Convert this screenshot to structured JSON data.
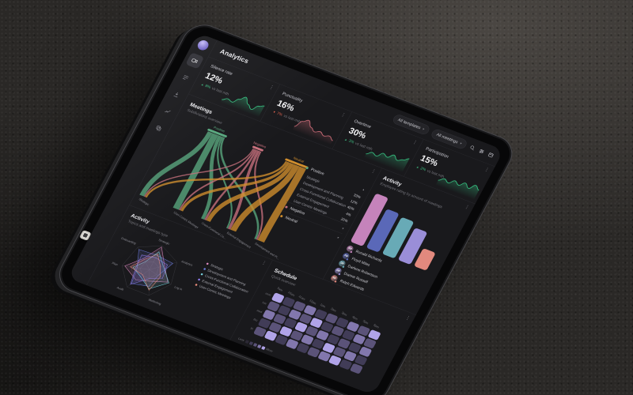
{
  "app": {
    "title": "Analytics"
  },
  "header": {
    "filters": [
      {
        "label": "All templates"
      },
      {
        "label": "All meetings"
      }
    ],
    "icons": [
      "search-icon",
      "filter-sliders-icon",
      "calendar-icon"
    ]
  },
  "sidebar": {
    "icons": [
      "video-meetings",
      "list",
      "download",
      "chart",
      "templates"
    ]
  },
  "colors": {
    "positive": "#3fbf83",
    "negative": "#e0604d",
    "sankey_positive": "#58a87e",
    "sankey_negative": "#c9717e",
    "sankey_neutral": "#d18e2d",
    "line": "#2a2a2f"
  },
  "kpis": [
    {
      "title": "Silence rate",
      "value": "12%",
      "delta": "8%",
      "direction": "up",
      "note": "vs last mth",
      "color": "#35b97c",
      "spark": [
        0.15,
        0.32,
        0.22,
        0.55,
        0.82,
        0.45,
        0.22,
        0.58,
        0.72
      ]
    },
    {
      "title": "Punctuality",
      "value": "16%",
      "delta": "7%",
      "direction": "down",
      "note": "vs last mth",
      "color": "#c56974",
      "spark": [
        0.2,
        0.68,
        0.88,
        0.52,
        0.33,
        0.47,
        0.3,
        0.42,
        0.22
      ]
    },
    {
      "title": "Overtime",
      "value": "30%",
      "delta": "3%",
      "direction": "up",
      "note": "vs last mth",
      "color": "#35b97c",
      "spark": [
        0.2,
        0.42,
        0.3,
        0.62,
        0.48,
        0.76,
        0.52,
        0.68,
        0.88
      ]
    },
    {
      "title": "Participation",
      "value": "15%",
      "delta": "2%",
      "direction": "up",
      "note": "vs last mth",
      "color": "#35b97c",
      "spark": [
        0.28,
        0.5,
        0.34,
        0.62,
        0.44,
        0.72,
        0.48,
        0.82,
        0.6
      ]
    }
  ],
  "meetings": {
    "title": "Meetings",
    "subtitle": "Subdivisions overview",
    "accordion": [
      {
        "label": "Positive",
        "color": "#58a87e",
        "expanded": true,
        "items": [
          {
            "label": "Strategic",
            "value": "33%"
          },
          {
            "label": "Development and Planning",
            "value": "12%"
          },
          {
            "label": "Cross-Functional Collaboration",
            "value": "40%"
          },
          {
            "label": "External Engagement",
            "value": "4%"
          },
          {
            "label": "User-Centric Meetings",
            "value": "20%"
          }
        ]
      },
      {
        "label": "Negative",
        "color": "#c9717e",
        "expanded": false,
        "items": []
      },
      {
        "label": "Neutral",
        "color": "#d18e2d",
        "expanded": false,
        "items": []
      }
    ],
    "chart_data": {
      "type": "sankey",
      "sources": [
        {
          "name": "Positive",
          "color": "#58a87e",
          "x": 105
        },
        {
          "name": "Negative",
          "color": "#c9717e",
          "x": 215
        },
        {
          "name": "Neutral",
          "color": "#d18e2d",
          "x": 320
        }
      ],
      "targets": [
        {
          "name": "Strategic",
          "x": 14
        },
        {
          "name": "User-Centric Meetings",
          "x": 108
        },
        {
          "name": "Cross-Functional Co...",
          "x": 183
        },
        {
          "name": "External Engagement",
          "x": 252
        },
        {
          "name": "Development and Pl...",
          "x": 328
        }
      ],
      "links": [
        [
          0,
          0,
          12
        ],
        [
          0,
          1,
          16
        ],
        [
          0,
          2,
          9
        ],
        [
          0,
          3,
          4
        ],
        [
          0,
          4,
          5
        ],
        [
          1,
          0,
          3
        ],
        [
          1,
          1,
          4
        ],
        [
          1,
          2,
          5
        ],
        [
          1,
          3,
          7
        ],
        [
          1,
          4,
          4
        ],
        [
          2,
          0,
          5
        ],
        [
          2,
          1,
          7
        ],
        [
          2,
          2,
          11
        ],
        [
          2,
          3,
          15
        ],
        [
          2,
          4,
          18
        ]
      ]
    }
  },
  "radar_card": {
    "title": "Activity",
    "subtitle": "Topics and meetings type",
    "chart_data": {
      "type": "radar",
      "axes": [
        "Strategic",
        "Analytics",
        "Log in",
        "Marketing",
        "Audit",
        "Plan",
        "Onboarding"
      ],
      "rings": 3,
      "series": [
        {
          "name": "Strategic",
          "color": "#e08ac2",
          "values": [
            0.95,
            0.55,
            0.85,
            0.45,
            0.6,
            0.9,
            0.5
          ]
        },
        {
          "name": "Development and Planning",
          "color": "#6d7de0",
          "values": [
            0.6,
            0.85,
            0.4,
            0.65,
            0.8,
            0.45,
            0.9
          ]
        },
        {
          "name": "Cross-Functional Collaboration",
          "color": "#7ad6e2",
          "values": [
            0.75,
            0.5,
            0.9,
            0.75,
            0.4,
            0.6,
            0.35
          ]
        },
        {
          "name": "External Engagement",
          "color": "#8f7cf0",
          "values": [
            0.5,
            0.65,
            0.6,
            0.35,
            0.85,
            0.5,
            0.65
          ]
        },
        {
          "name": "User-Centric Meetings",
          "color": "#ef8f7f",
          "values": [
            0.65,
            0.4,
            0.5,
            0.8,
            0.3,
            0.7,
            0.45
          ]
        }
      ]
    }
  },
  "bars_card": {
    "title": "Activity",
    "subtitle": "Employee rating by amount of meetings",
    "chart_data": {
      "type": "bar",
      "categories": [
        "Ronald Richards",
        "Floyd Miles",
        "Darlene Robertson",
        "Dianne Russell",
        "Ralph Edwards"
      ],
      "values": [
        92,
        74,
        70,
        61,
        34
      ],
      "colors": [
        "#c583bb",
        "#5a68b8",
        "#68aab6",
        "#9a8ed8",
        "#e2897e"
      ],
      "ylim": [
        0,
        100
      ]
    },
    "people": [
      {
        "name": "Ronald Richards",
        "initials": "RR",
        "color": "#c583bb"
      },
      {
        "name": "Floyd Miles",
        "initials": "FM",
        "color": "#5a68b8"
      },
      {
        "name": "Darlene Robertson",
        "initials": "DR",
        "color": "#68aab6"
      },
      {
        "name": "Dianne Russell",
        "initials": "DR",
        "color": "#9a8ed8"
      },
      {
        "name": "Ralph Edwards",
        "initials": "RE",
        "color": "#e2897e"
      }
    ]
  },
  "schedule": {
    "title": "Schedule",
    "subtitle": "Quick overview",
    "legend": {
      "less": "Less",
      "more": "More"
    },
    "chart_data": {
      "type": "heatmap",
      "columns": [
        "9am",
        "10am",
        "11am",
        "12pm",
        "1pm",
        "2pm",
        "3pm",
        "4pm",
        "5pm",
        "6pm"
      ],
      "rows": [
        "mon",
        "tue",
        "wed",
        "thu",
        "fri"
      ],
      "palette": [
        "#2b2834",
        "#413c57",
        "#5b5379",
        "#8277ad",
        "#b0a3e8"
      ],
      "values": [
        [
          4,
          1,
          2,
          3,
          1,
          2,
          1,
          3,
          2,
          4
        ],
        [
          2,
          1,
          3,
          2,
          4,
          1,
          2,
          1,
          3,
          2
        ],
        [
          3,
          2,
          1,
          4,
          2,
          3,
          1,
          2,
          1,
          3
        ],
        [
          1,
          2,
          4,
          2,
          3,
          1,
          4,
          2,
          3,
          1
        ],
        [
          2,
          4,
          1,
          3,
          1,
          2,
          3,
          4,
          1,
          2
        ]
      ]
    }
  }
}
